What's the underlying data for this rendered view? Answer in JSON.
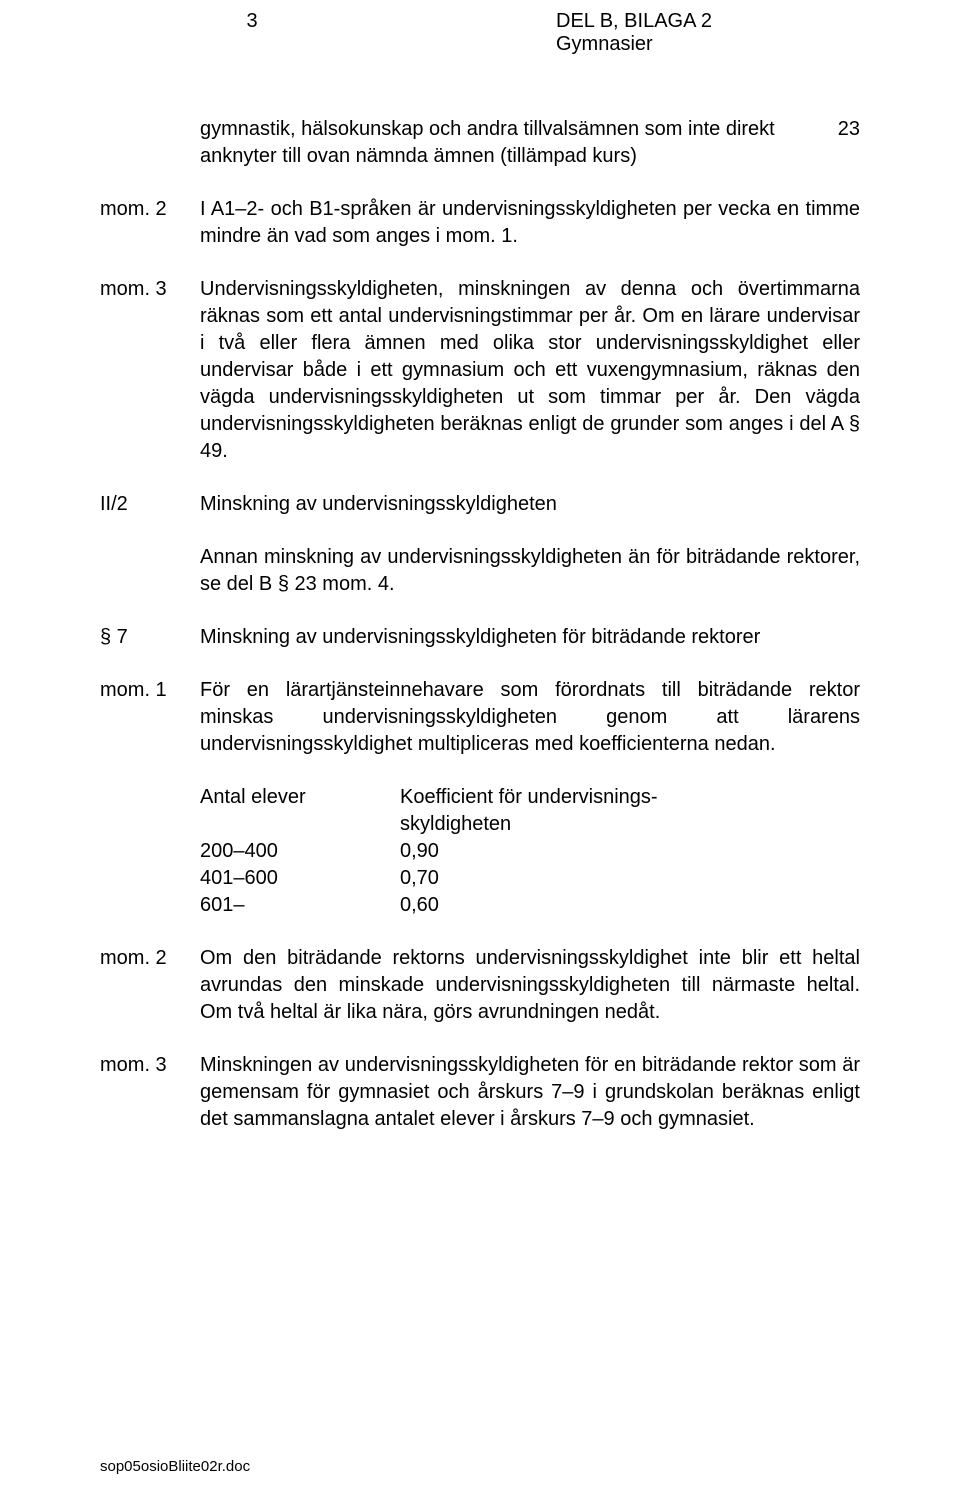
{
  "header": {
    "page_num": "3",
    "doc_ref_line1": "DEL B, BILAGA 2",
    "doc_ref_line2": "Gymnasier"
  },
  "block_intro": {
    "text": "gymnastik, hälsokunskap och andra tillvalsämnen som inte direkt anknyter till ovan nämnda ämnen (tillämpad kurs)",
    "num": "23"
  },
  "mom2": {
    "label": "mom. 2",
    "text": "I A1–2- och B1-språken är undervisningsskyldigheten per vecka en timme mindre än vad som anges i mom. 1."
  },
  "mom3": {
    "label": "mom. 3",
    "text": "Undervisningsskyldigheten, minskningen av denna och övertimmarna räknas som ett antal undervisningstimmar per år. Om en lärare undervisar i två eller flera ämnen med olika stor undervisningsskyldighet eller undervisar både i ett gymnasium och ett vuxengymnasium, räknas den vägda undervisningsskyldigheten ut som timmar per år. Den vägda undervisningsskyldigheten beräknas enligt de grunder som anges i del A § 49."
  },
  "ii2": {
    "label": "II/2",
    "heading": "Minskning av undervisningsskyldigheten",
    "text": "Annan minskning av undervisningsskyldigheten än för biträdande rektorer, se del B § 23 mom. 4."
  },
  "s7": {
    "label": "§ 7",
    "heading": "Minskning av undervisningsskyldigheten för biträdande rektorer"
  },
  "s7_mom1": {
    "label": "mom. 1",
    "text": "För en lärartjänsteinnehavare som förordnats till biträdande rektor minskas undervisningsskyldigheten genom att lärarens undervisningsskyldighet multipliceras med koefficienterna nedan."
  },
  "table": {
    "h1": "Antal elever",
    "h2a": "Koefficient för undervisnings-",
    "h2b": "skyldigheten",
    "rows": [
      {
        "c1": "200–400",
        "c2": "0,90"
      },
      {
        "c1": "401–600",
        "c2": "0,70"
      },
      {
        "c1": "601–",
        "c2": "0,60"
      }
    ]
  },
  "s7_mom2": {
    "label": "mom. 2",
    "text": "Om den biträdande rektorns undervisningsskyldighet inte blir ett heltal avrundas den minskade undervisningsskyldigheten till närmaste heltal. Om två heltal är lika nära, görs avrundningen nedåt."
  },
  "s7_mom3": {
    "label": "mom. 3",
    "text": "Minskningen av undervisningsskyldigheten för en biträdande rektor som är gemensam för gymnasiet och årskurs 7–9 i grundskolan beräknas enligt det sammanslagna antalet elever i årskurs 7–9 och gymnasiet."
  },
  "footer": "sop05osioBliite02r.doc"
}
